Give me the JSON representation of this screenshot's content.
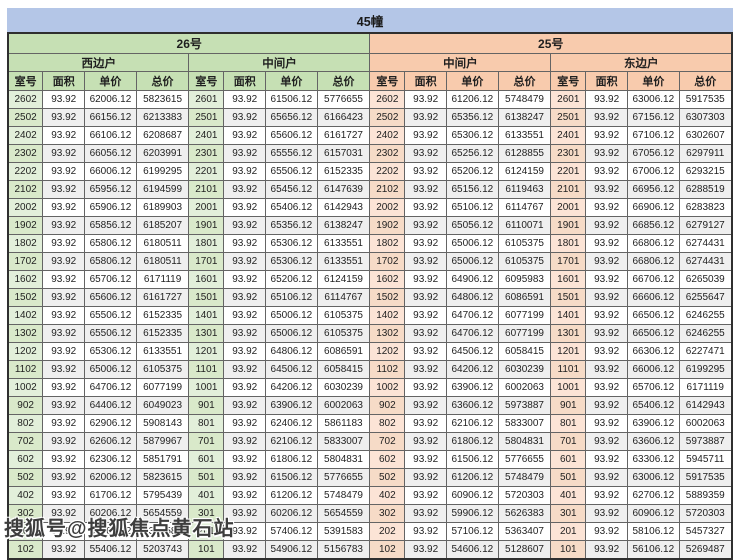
{
  "title": "45幢",
  "watermark": "搜狐号@搜狐焦点黄石站",
  "header": {
    "buildings": [
      {
        "name": "26号",
        "units": [
          "西边户",
          "中间户"
        ]
      },
      {
        "name": "25号",
        "units": [
          "中间户",
          "东边户"
        ]
      }
    ],
    "columns": [
      "室号",
      "面积",
      "单价",
      "总价"
    ]
  },
  "colors": {
    "title_bg": "#b4c6e7",
    "green_header": "#c6e0b4",
    "green_cell": "#e2efda",
    "peach_header": "#f8cbad",
    "peach_cell": "#fce4d6",
    "stripe": "#efefef"
  },
  "rows": [
    [
      "2602",
      "93.92",
      "62006.12",
      "5823615",
      "2601",
      "93.92",
      "61506.12",
      "5776655",
      "2602",
      "93.92",
      "61206.12",
      "5748479",
      "2601",
      "93.92",
      "63006.12",
      "5917535"
    ],
    [
      "2502",
      "93.92",
      "66156.12",
      "6213383",
      "2501",
      "93.92",
      "65656.12",
      "6166423",
      "2502",
      "93.92",
      "65356.12",
      "6138247",
      "2501",
      "93.92",
      "67156.12",
      "6307303"
    ],
    [
      "2402",
      "93.92",
      "66106.12",
      "6208687",
      "2401",
      "93.92",
      "65606.12",
      "6161727",
      "2402",
      "93.92",
      "65306.12",
      "6133551",
      "2401",
      "93.92",
      "67106.12",
      "6302607"
    ],
    [
      "2302",
      "93.92",
      "66056.12",
      "6203991",
      "2301",
      "93.92",
      "65556.12",
      "6157031",
      "2302",
      "93.92",
      "65256.12",
      "6128855",
      "2301",
      "93.92",
      "67056.12",
      "6297911"
    ],
    [
      "2202",
      "93.92",
      "66006.12",
      "6199295",
      "2201",
      "93.92",
      "65506.12",
      "6152335",
      "2202",
      "93.92",
      "65206.12",
      "6124159",
      "2201",
      "93.92",
      "67006.12",
      "6293215"
    ],
    [
      "2102",
      "93.92",
      "65956.12",
      "6194599",
      "2101",
      "93.92",
      "65456.12",
      "6147639",
      "2102",
      "93.92",
      "65156.12",
      "6119463",
      "2101",
      "93.92",
      "66956.12",
      "6288519"
    ],
    [
      "2002",
      "93.92",
      "65906.12",
      "6189903",
      "2001",
      "93.92",
      "65406.12",
      "6142943",
      "2002",
      "93.92",
      "65106.12",
      "6114767",
      "2001",
      "93.92",
      "66906.12",
      "6283823"
    ],
    [
      "1902",
      "93.92",
      "65856.12",
      "6185207",
      "1901",
      "93.92",
      "65356.12",
      "6138247",
      "1902",
      "93.92",
      "65056.12",
      "6110071",
      "1901",
      "93.92",
      "66856.12",
      "6279127"
    ],
    [
      "1802",
      "93.92",
      "65806.12",
      "6180511",
      "1801",
      "93.92",
      "65306.12",
      "6133551",
      "1802",
      "93.92",
      "65006.12",
      "6105375",
      "1801",
      "93.92",
      "66806.12",
      "6274431"
    ],
    [
      "1702",
      "93.92",
      "65806.12",
      "6180511",
      "1701",
      "93.92",
      "65306.12",
      "6133551",
      "1702",
      "93.92",
      "65006.12",
      "6105375",
      "1701",
      "93.92",
      "66806.12",
      "6274431"
    ],
    [
      "1602",
      "93.92",
      "65706.12",
      "6171119",
      "1601",
      "93.92",
      "65206.12",
      "6124159",
      "1602",
      "93.92",
      "64906.12",
      "6095983",
      "1601",
      "93.92",
      "66706.12",
      "6265039"
    ],
    [
      "1502",
      "93.92",
      "65606.12",
      "6161727",
      "1501",
      "93.92",
      "65106.12",
      "6114767",
      "1502",
      "93.92",
      "64806.12",
      "6086591",
      "1501",
      "93.92",
      "66606.12",
      "6255647"
    ],
    [
      "1402",
      "93.92",
      "65506.12",
      "6152335",
      "1401",
      "93.92",
      "65006.12",
      "6105375",
      "1402",
      "93.92",
      "64706.12",
      "6077199",
      "1401",
      "93.92",
      "66506.12",
      "6246255"
    ],
    [
      "1302",
      "93.92",
      "65506.12",
      "6152335",
      "1301",
      "93.92",
      "65006.12",
      "6105375",
      "1302",
      "93.92",
      "64706.12",
      "6077199",
      "1301",
      "93.92",
      "66506.12",
      "6246255"
    ],
    [
      "1202",
      "93.92",
      "65306.12",
      "6133551",
      "1201",
      "93.92",
      "64806.12",
      "6086591",
      "1202",
      "93.92",
      "64506.12",
      "6058415",
      "1201",
      "93.92",
      "66306.12",
      "6227471"
    ],
    [
      "1102",
      "93.92",
      "65006.12",
      "6105375",
      "1101",
      "93.92",
      "64506.12",
      "6058415",
      "1102",
      "93.92",
      "64206.12",
      "6030239",
      "1101",
      "93.92",
      "66006.12",
      "6199295"
    ],
    [
      "1002",
      "93.92",
      "64706.12",
      "6077199",
      "1001",
      "93.92",
      "64206.12",
      "6030239",
      "1002",
      "93.92",
      "63906.12",
      "6002063",
      "1001",
      "93.92",
      "65706.12",
      "6171119"
    ],
    [
      "902",
      "93.92",
      "64406.12",
      "6049023",
      "901",
      "93.92",
      "63906.12",
      "6002063",
      "902",
      "93.92",
      "63606.12",
      "5973887",
      "901",
      "93.92",
      "65406.12",
      "6142943"
    ],
    [
      "802",
      "93.92",
      "62906.12",
      "5908143",
      "801",
      "93.92",
      "62406.12",
      "5861183",
      "802",
      "93.92",
      "62106.12",
      "5833007",
      "801",
      "93.92",
      "63906.12",
      "6002063"
    ],
    [
      "702",
      "93.92",
      "62606.12",
      "5879967",
      "701",
      "93.92",
      "62106.12",
      "5833007",
      "702",
      "93.92",
      "61806.12",
      "5804831",
      "701",
      "93.92",
      "63606.12",
      "5973887"
    ],
    [
      "602",
      "93.92",
      "62306.12",
      "5851791",
      "601",
      "93.92",
      "61806.12",
      "5804831",
      "602",
      "93.92",
      "61506.12",
      "5776655",
      "601",
      "93.92",
      "63306.12",
      "5945711"
    ],
    [
      "502",
      "93.92",
      "62006.12",
      "5823615",
      "501",
      "93.92",
      "61506.12",
      "5776655",
      "502",
      "93.92",
      "61206.12",
      "5748479",
      "501",
      "93.92",
      "63006.12",
      "5917535"
    ],
    [
      "402",
      "93.92",
      "61706.12",
      "5795439",
      "401",
      "93.92",
      "61206.12",
      "5748479",
      "402",
      "93.92",
      "60906.12",
      "5720303",
      "401",
      "93.92",
      "62706.12",
      "5889359"
    ],
    [
      "302",
      "93.92",
      "60206.12",
      "5654559",
      "301",
      "93.92",
      "60206.12",
      "5654559",
      "302",
      "93.92",
      "59906.12",
      "5626383",
      "301",
      "93.92",
      "60906.12",
      "5720303"
    ],
    [
      "202",
      "93.92",
      "57406.12",
      "5391583",
      "201",
      "93.92",
      "57406.12",
      "5391583",
      "202",
      "93.92",
      "57106.12",
      "5363407",
      "201",
      "93.92",
      "58106.12",
      "5457327"
    ],
    [
      "102",
      "93.92",
      "55406.12",
      "5203743",
      "101",
      "93.92",
      "54906.12",
      "5156783",
      "102",
      "93.92",
      "54606.12",
      "5128607",
      "101",
      "93.92",
      "56106.12",
      "5269487"
    ]
  ]
}
